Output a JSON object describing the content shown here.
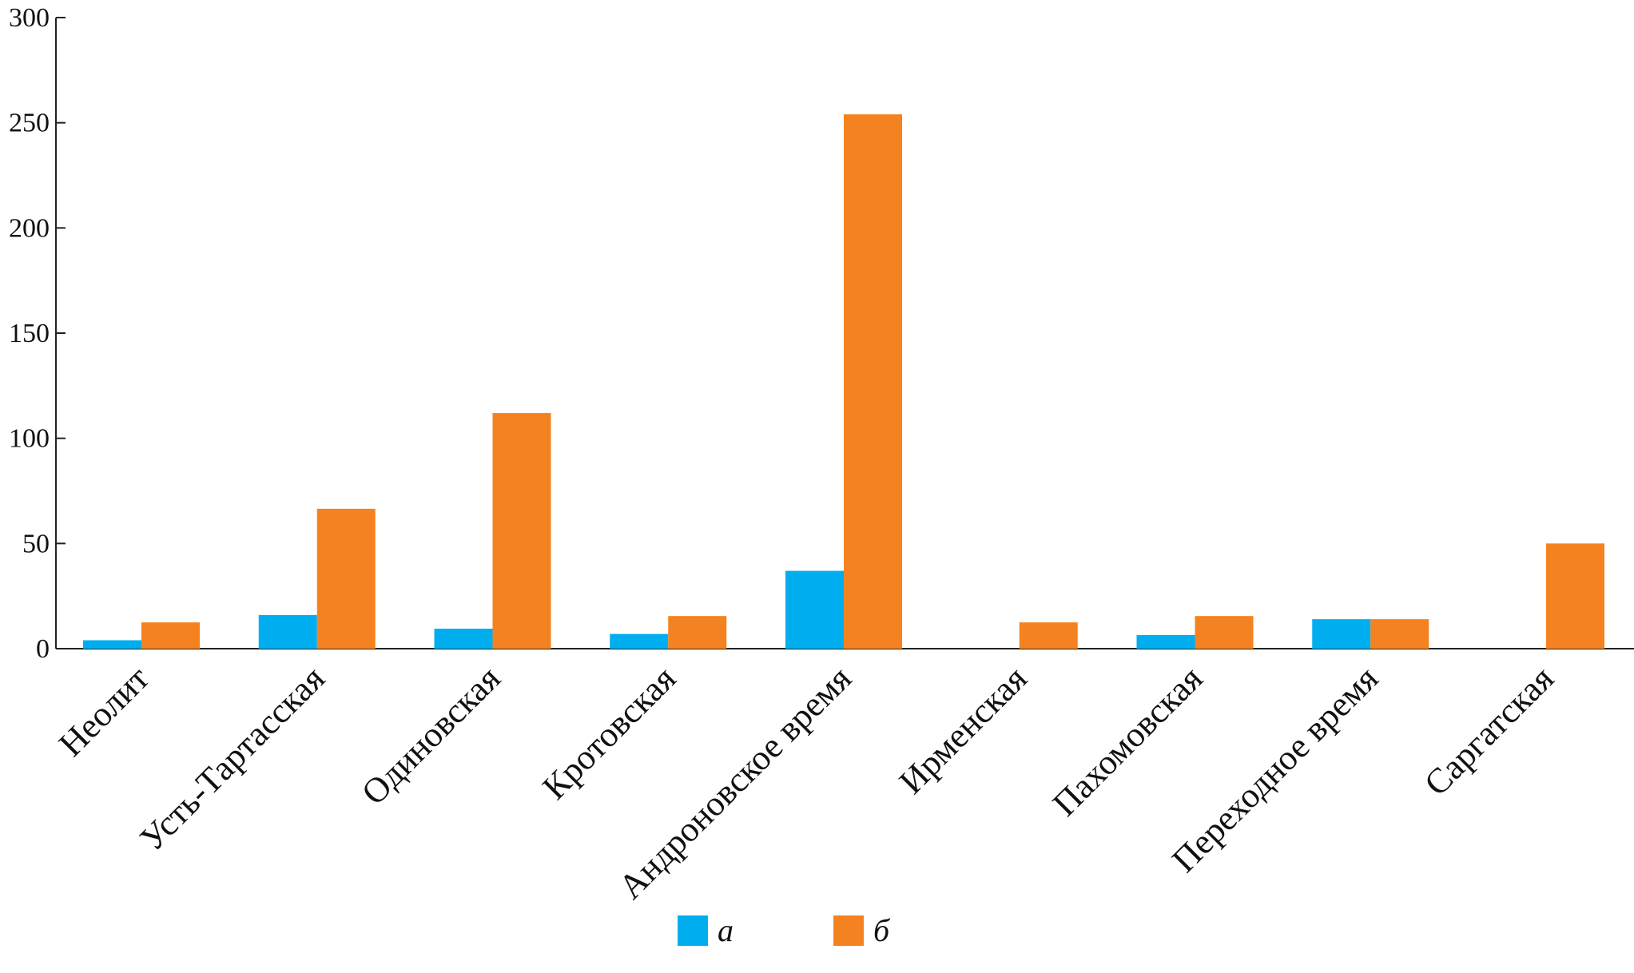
{
  "chart_data": {
    "type": "bar",
    "categories": [
      "Неолит",
      "Усть-Тартасская",
      "Одиновская",
      "Кротовская",
      "Андроновское время",
      "Ирменская",
      "Пахомовская",
      "Переходное время",
      "Саргатская"
    ],
    "series": [
      {
        "name": "а",
        "color": "#00aeef",
        "values": [
          4,
          16,
          9.5,
          7,
          37,
          0,
          6.5,
          14,
          0
        ]
      },
      {
        "name": "б",
        "color": "#f58220",
        "values": [
          12.5,
          66.5,
          112,
          15.5,
          254,
          12.5,
          15.5,
          14,
          50
        ]
      }
    ],
    "yticks": [
      0,
      50,
      100,
      150,
      200,
      250,
      300
    ],
    "ylim": [
      0,
      300
    ],
    "legend_position": "bottom-center",
    "grid": false
  }
}
